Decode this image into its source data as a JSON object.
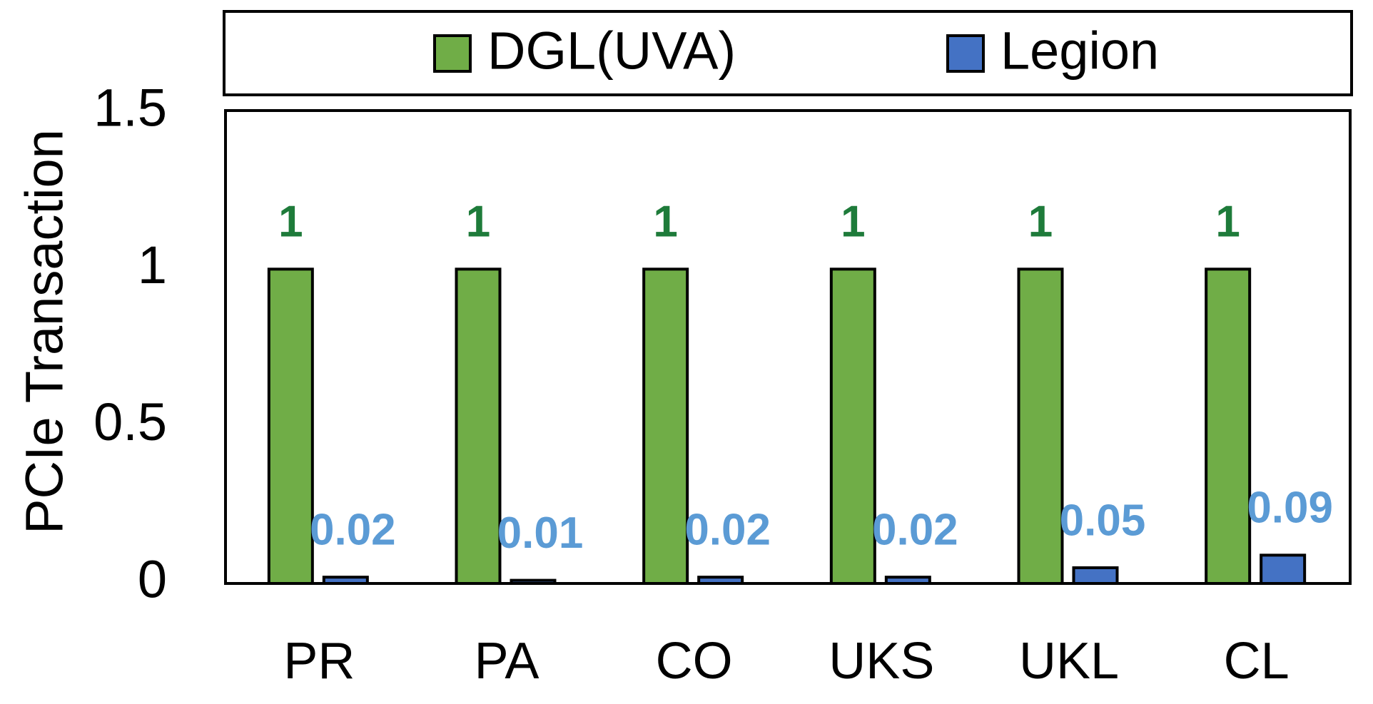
{
  "chart_data": {
    "type": "bar",
    "y_label": "PCIe Transaction",
    "categories": [
      "PR",
      "PA",
      "CO",
      "UKS",
      "UKL",
      "CL"
    ],
    "series": [
      {
        "name": "DGL(UVA)",
        "color": "#70ad47",
        "label_color": "#1e7b3a",
        "values": [
          1,
          1,
          1,
          1,
          1,
          1
        ]
      },
      {
        "name": "Legion",
        "color": "#4472c4",
        "label_color": "#5b9bd5",
        "values": [
          0.02,
          0.01,
          0.02,
          0.02,
          0.05,
          0.09
        ]
      }
    ],
    "ylim": [
      0,
      1.5
    ],
    "yticks": [
      0,
      0.5,
      1,
      1.5
    ],
    "grid": false
  }
}
